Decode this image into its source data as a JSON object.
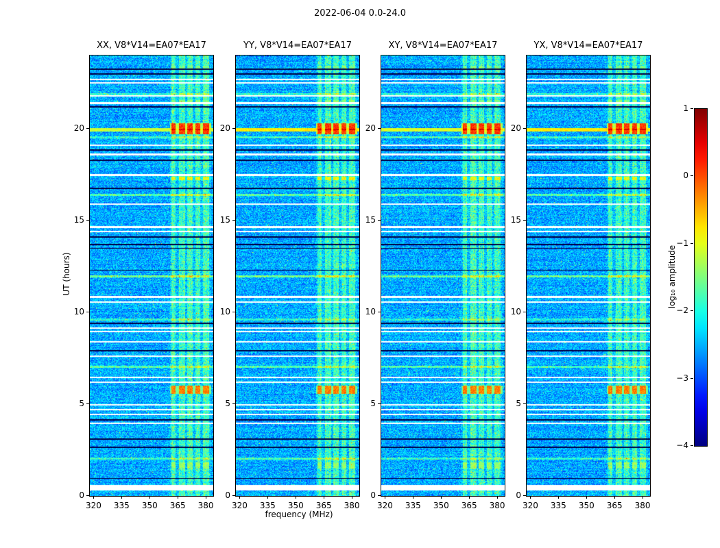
{
  "title": "2022-06-04 0.0-24.0",
  "panels": [
    {
      "title": "XX, V8*V14=EA07*EA17"
    },
    {
      "title": "YY, V8*V14=EA07*EA17"
    },
    {
      "title": "XY, V8*V14=EA07*EA17"
    },
    {
      "title": "YX, V8*V14=EA07*EA17"
    }
  ],
  "axes": {
    "xlabel": "frequency (MHz)",
    "ylabel": "UT (hours)",
    "x_ticks": [
      320,
      335,
      350,
      365,
      380
    ],
    "y_ticks": [
      0,
      5,
      10,
      15,
      20
    ],
    "x_range": [
      318,
      384
    ],
    "y_range": [
      0,
      24
    ]
  },
  "colorbar": {
    "label": "log₁₀ amplitude",
    "ticks": [
      1,
      0,
      -1,
      -2,
      -3,
      -4
    ],
    "range": [
      -4,
      1
    ],
    "colormap": "jet"
  },
  "chart_data": {
    "type": "heatmap",
    "title": "2022-06-04 0.0-24.0",
    "xlabel": "frequency (MHz)",
    "ylabel": "UT (hours)",
    "panels": [
      "XX, V8*V14=EA07*EA17",
      "YY, V8*V14=EA07*EA17",
      "XY, V8*V14=EA07*EA17",
      "YX, V8*V14=EA07*EA17"
    ],
    "x_range_mhz": [
      318,
      384
    ],
    "x_ticks_mhz": [
      320,
      335,
      350,
      365,
      380
    ],
    "y_range_hours": [
      0,
      24
    ],
    "y_ticks_hours": [
      0,
      5,
      10,
      15,
      20
    ],
    "color_scale": {
      "label": "log10 amplitude",
      "min": -4,
      "max": 1,
      "ticks": [
        1,
        0,
        -1,
        -2,
        -3,
        -4
      ],
      "colormap": "jet"
    },
    "background_log10_amplitude": [
      -3.1,
      -2.0
    ],
    "rfi_band_mhz": [
      361,
      383
    ],
    "rfi_columns_mhz": [
      [
        361.5,
        363.8
      ],
      [
        365.8,
        368.8
      ],
      [
        370.0,
        373.0
      ],
      [
        374.5,
        377.0
      ],
      [
        378.6,
        381.8
      ]
    ],
    "bright_events": [
      {
        "ut": 20.0,
        "duration_h": 0.6,
        "level": 0.1,
        "extent": "rfi-band"
      },
      {
        "ut": 19.98,
        "duration_h": 0.08,
        "level": 0.55,
        "extent": "rfi-band"
      },
      {
        "ut": 19.95,
        "duration_h": 0.22,
        "level": -1.15,
        "extent": "full-band",
        "panel_level_adjust": [
          0,
          0.35,
          0.1,
          0.35
        ]
      },
      {
        "ut": 5.8,
        "duration_h": 0.45,
        "level": -0.25,
        "extent": "rfi-band"
      },
      {
        "ut": 17.3,
        "duration_h": 0.22,
        "level": -0.9,
        "extent": "rfi-band"
      },
      {
        "ut": 21.5,
        "duration_h": 0.18,
        "level": -1.5,
        "extent": "rfi-band"
      },
      {
        "ut": 1.65,
        "duration_h": 0.35,
        "level": -1.4,
        "extent": "rfi-band"
      },
      {
        "ut": 23.35,
        "duration_h": 0.2,
        "level": -1.6,
        "extent": "rfi-band"
      },
      {
        "ut": 12.0,
        "duration_h": 0.12,
        "level": -1.7,
        "extent": "rfi-band"
      }
    ],
    "white_gap_rows_ut": [
      [
        0.45,
        0.3
      ],
      [
        3.95,
        0.08
      ],
      [
        4.45,
        0.08
      ],
      [
        4.7,
        0.08
      ],
      [
        4.95,
        0.08
      ],
      [
        6.2,
        0.09
      ],
      [
        6.45,
        0.08
      ],
      [
        7.6,
        0.08
      ],
      [
        8.4,
        0.09
      ],
      [
        8.95,
        0.08
      ],
      [
        9.15,
        0.08
      ],
      [
        10.55,
        0.08
      ],
      [
        10.85,
        0.09
      ],
      [
        14.4,
        0.09
      ],
      [
        14.65,
        0.08
      ],
      [
        15.9,
        0.08
      ],
      [
        17.5,
        0.12
      ],
      [
        18.6,
        0.09
      ],
      [
        19.1,
        0.08
      ],
      [
        21.4,
        0.1
      ],
      [
        21.8,
        0.09
      ],
      [
        22.5,
        0.08
      ],
      [
        22.7,
        0.08
      ]
    ],
    "dark_rows_ut": [
      [
        0.95,
        0.06
      ],
      [
        2.65,
        0.07
      ],
      [
        3.1,
        0.06
      ],
      [
        4.15,
        0.06
      ],
      [
        7.9,
        0.07
      ],
      [
        9.4,
        0.06
      ],
      [
        12.3,
        0.06
      ],
      [
        13.5,
        0.06
      ],
      [
        13.7,
        0.06
      ],
      [
        14.1,
        0.07
      ],
      [
        16.75,
        0.06
      ],
      [
        18.3,
        0.08
      ],
      [
        18.85,
        0.1
      ],
      [
        21.2,
        0.1
      ],
      [
        23.0,
        0.08
      ],
      [
        23.25,
        0.07
      ]
    ],
    "bright_rows_ut": [
      [
        2.05,
        0.7
      ],
      [
        7.05,
        0.8
      ],
      [
        9.6,
        0.6
      ],
      [
        11.95,
        0.9
      ],
      [
        16.4,
        0.8
      ],
      [
        19.55,
        0.7
      ],
      [
        21.9,
        0.6
      ]
    ]
  }
}
